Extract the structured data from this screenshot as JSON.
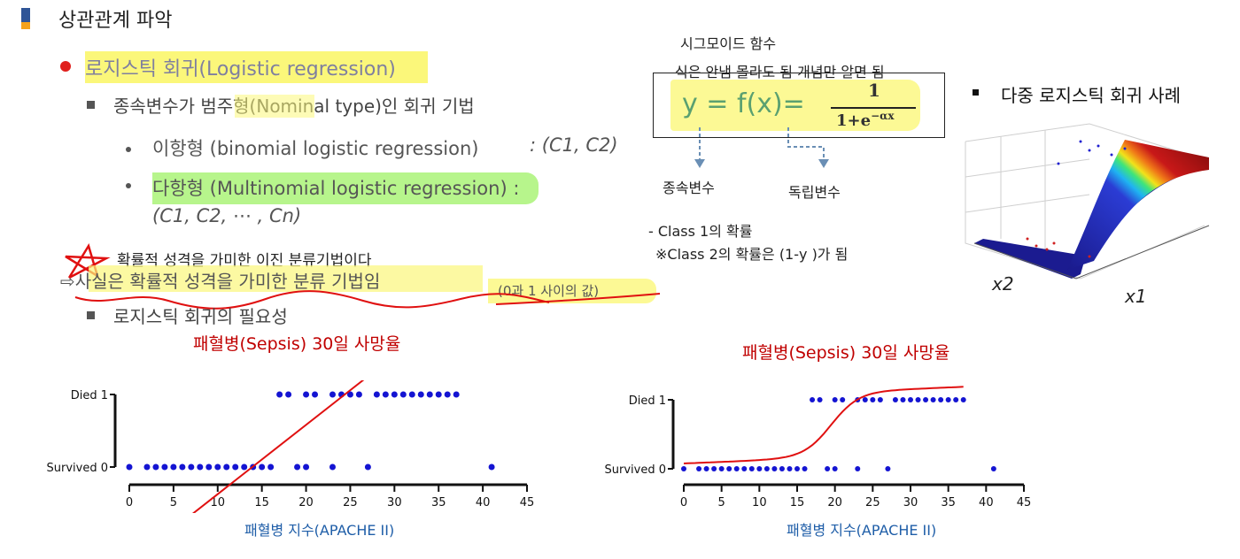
{
  "heading": "상관관계 파악",
  "bullet1": "로지스틱 회귀(Logistic regression)",
  "sub1": "종속변수가 범주형(Nominal type)인 회귀 기법",
  "binomial": "이항형 (binomial logistic regression)",
  "binomial_set": ": (C1, C2)",
  "multinomial": "다항형 (Multinomial logistic regression) :",
  "multinomial_set": "(C1, C2, ⋯ , Cn)",
  "annotation_star": "확률적 성격을 가미한 이진 분류기법이다",
  "annotation_arrow": "⇨사실은 확률적 성격을 가미한  분류 기법임",
  "annotation_range": "(0과 1 사이의 값)",
  "sub2": "로지스틱 회귀의 필요성",
  "sigmoid": {
    "title": "시그모이드 함수",
    "note": "식은 안냄 몰라도 됨 개념만 알면 됨",
    "formula_lhs": "y  =  f(x)=",
    "numerator": "1",
    "denominator": "1+e",
    "exponent": "−αx",
    "dependent": "종속변수",
    "independent": "독립변수",
    "class1": "- Class 1의 확률",
    "class2": "※Class 2의 확률은 (1-y )가 됨"
  },
  "multi_case": {
    "title": "다중 로지스틱 회귀 사례",
    "x2_label": "x2",
    "x1_label": "x1"
  },
  "chart_left": {
    "title": "패혈병(Sepsis) 30일 사망율",
    "xlabel": "패혈병 지수(APACHE II)"
  },
  "chart_right": {
    "title": "패혈병(Sepsis) 30일 사망율",
    "xlabel": "패혈병 지수(APACHE II)"
  },
  "chart_data": [
    {
      "type": "scatter",
      "title": "패혈병(Sepsis) 30일 사망율",
      "xlabel": "패혈병 지수(APACHE II)",
      "xlim": [
        0,
        45
      ],
      "xticks": [
        0,
        5,
        10,
        15,
        20,
        25,
        30,
        35,
        40,
        45
      ],
      "yticks": [
        "Survived 0",
        "Died 1"
      ],
      "series": [
        {
          "y": 1,
          "x": [
            17,
            18,
            20,
            21,
            23,
            24,
            25,
            26,
            28,
            29,
            30,
            31,
            32,
            33,
            34,
            35,
            36,
            37
          ]
        },
        {
          "y": 0,
          "x": [
            0,
            2,
            3,
            4,
            5,
            6,
            7,
            8,
            9,
            10,
            11,
            12,
            13,
            14,
            15,
            16,
            19,
            20,
            23,
            27,
            41
          ]
        }
      ],
      "overlay": "straight regression line"
    },
    {
      "type": "scatter",
      "title": "패혈병(Sepsis) 30일 사망율",
      "xlabel": "패혈병 지수(APACHE II)",
      "xlim": [
        0,
        45
      ],
      "xticks": [
        0,
        5,
        10,
        15,
        20,
        25,
        30,
        35,
        40,
        45
      ],
      "yticks": [
        "Survived 0",
        "Died 1"
      ],
      "series": [
        {
          "y": 1,
          "x": [
            17,
            18,
            20,
            21,
            23,
            24,
            25,
            26,
            28,
            29,
            30,
            31,
            32,
            33,
            34,
            35,
            36,
            37
          ]
        },
        {
          "y": 0,
          "x": [
            0,
            2,
            3,
            4,
            5,
            6,
            7,
            8,
            9,
            10,
            11,
            12,
            13,
            14,
            15,
            16,
            19,
            20,
            23,
            27,
            41
          ]
        }
      ],
      "overlay": "sigmoid curve"
    }
  ],
  "colors": {
    "highlight_yellow": "#fbf77a",
    "highlight_green": "#b7f58c",
    "red": "#c00000",
    "dot_blue": "#1414d2",
    "axis_label_blue": "#1f5ea8"
  }
}
